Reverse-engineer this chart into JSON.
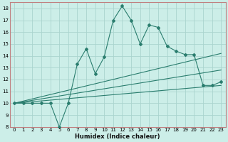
{
  "title": "",
  "xlabel": "Humidex (Indice chaleur)",
  "bg_color": "#cceee8",
  "grid_color": "#aad4ce",
  "line_color": "#2a7d6e",
  "spine_color": "#c08080",
  "xlim": [
    -0.5,
    23.5
  ],
  "ylim": [
    8,
    18.5
  ],
  "xticks": [
    0,
    1,
    2,
    3,
    4,
    5,
    6,
    7,
    8,
    9,
    10,
    11,
    12,
    13,
    14,
    15,
    16,
    17,
    18,
    19,
    20,
    21,
    22,
    23
  ],
  "yticks": [
    8,
    9,
    10,
    11,
    12,
    13,
    14,
    15,
    16,
    17,
    18
  ],
  "series1_x": [
    0,
    1,
    2,
    3,
    4,
    5,
    6,
    7,
    8,
    9,
    10,
    11,
    12,
    13,
    14,
    15,
    16,
    17,
    18,
    19,
    20,
    21,
    22,
    23
  ],
  "series1_y": [
    10,
    10,
    10,
    10,
    10,
    8,
    10,
    13.3,
    14.6,
    12.5,
    13.9,
    17.0,
    18.2,
    17.0,
    15.0,
    16.6,
    16.4,
    14.8,
    14.4,
    14.1,
    14.1,
    11.5,
    11.5,
    11.8
  ],
  "series2_x": [
    0,
    23
  ],
  "series2_y": [
    10.0,
    14.2
  ],
  "series3_x": [
    0,
    23
  ],
  "series3_y": [
    10.0,
    12.8
  ],
  "series4_x": [
    0,
    23
  ],
  "series4_y": [
    10.0,
    11.5
  ],
  "xlabel_fontsize": 6.0,
  "tick_fontsize": 5.0,
  "lw": 0.8,
  "marker_size": 2.0
}
